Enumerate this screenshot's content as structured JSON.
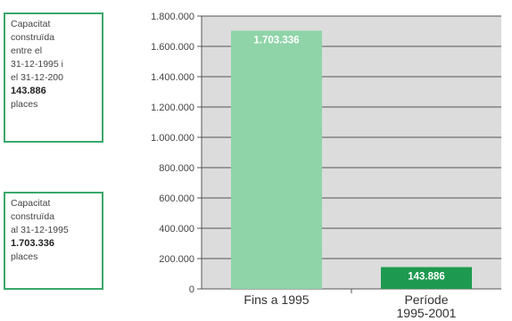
{
  "notes": [
    {
      "lines": [
        "Capacitat",
        "construïda",
        "entre el",
        "31-12-1995 i",
        "el 31-12-200"
      ],
      "value": "143.886",
      "unit": "places"
    },
    {
      "lines": [
        "Capacitat",
        "construïda",
        "al 31-12-1995"
      ],
      "value": "1.703.336",
      "unit": "places"
    }
  ],
  "colors": {
    "plot_bg": "#dcdcdc",
    "grid": "#555555",
    "bar_1": "#8fd4a8",
    "bar_2": "#1e9a50",
    "box_border": "#3aa86b"
  },
  "chart_data": {
    "type": "bar",
    "categories": [
      "Fins a 1995",
      "Període\n1995-2001"
    ],
    "values": [
      1703336,
      143886
    ],
    "value_labels": [
      "1.703.336",
      "143.886"
    ],
    "ylim": [
      0,
      1800000
    ],
    "yticks": [
      0,
      200000,
      400000,
      600000,
      800000,
      1000000,
      1200000,
      1400000,
      1600000,
      1800000
    ],
    "ytick_labels": [
      "0",
      "200.000",
      "400.000",
      "600.000",
      "800.000",
      "1.000.000",
      "1.200.000",
      "1.400.000",
      "1.600.000",
      "1.800.000"
    ],
    "grid": true,
    "title": "",
    "xlabel": "",
    "ylabel": ""
  }
}
